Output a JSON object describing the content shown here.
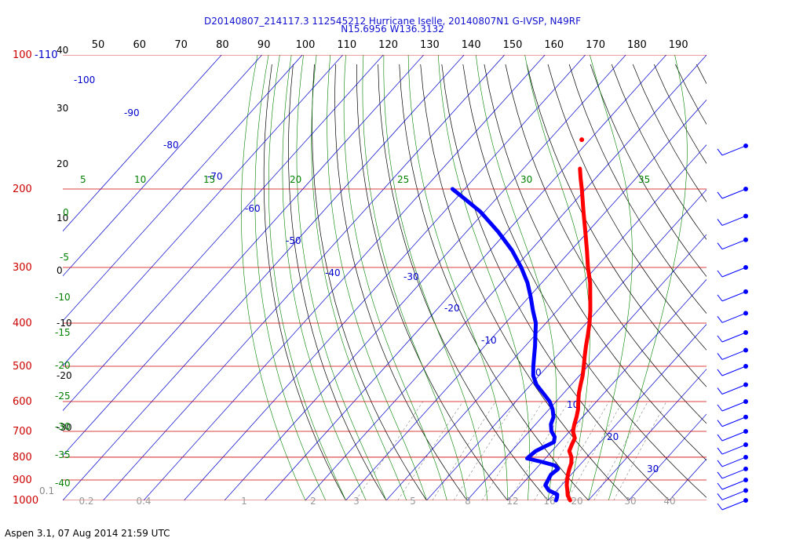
{
  "header": {
    "line1": "D20140807_214117.3 112545212 Hurricane Iselle, 20140807N1 G-IVSP, N49RF",
    "line2": "N15.6956 W136.3132"
  },
  "footer": "Aspen 3.1, 07 Aug 2014  21:59 UTC",
  "colors": {
    "temperature": "#ff0000",
    "dewpoint": "#0000ff",
    "isobar": "#cc0000",
    "isotherm": "#0000cc",
    "dry_adiabat": "#000000",
    "moist_adiabat": "#008000",
    "mixing_ratio": "#888888"
  },
  "chart_data": {
    "type": "skew-t",
    "pressure_axis_label": "pressure (hPa)",
    "pressure_levels": [
      100,
      200,
      300,
      400,
      500,
      600,
      700,
      800,
      900,
      1000
    ],
    "pressure_tick_labels": [
      "100",
      "200",
      "300",
      "400",
      "500",
      "600",
      "700",
      "800",
      "900",
      "1000"
    ],
    "corner_labels": {
      "top_left_blue": "-110",
      "bottom_left_gray": "0.1"
    },
    "top_axis_ticks": [
      "50",
      "60",
      "70",
      "80",
      "90",
      "100",
      "110",
      "120",
      "130",
      "140",
      "150",
      "160",
      "170",
      "180",
      "190"
    ],
    "left_axis_ticks": [
      "40",
      "30",
      "20",
      "10",
      "0",
      "-10",
      "-20",
      "-30"
    ],
    "isotherm_labels": [
      "-100",
      "-90",
      "-80",
      "-70",
      "-60",
      "-50",
      "-40",
      "-30",
      "-20",
      "-10",
      "0",
      "10",
      "20",
      "30"
    ],
    "moist_adiabat_labels": [
      "5",
      "10",
      "15",
      "20",
      "25",
      "30",
      "35",
      "0",
      "-5",
      "-10",
      "-15",
      "-20",
      "-25",
      "-30",
      "-35",
      "-40"
    ],
    "mixing_ratio_labels": [
      "0.2",
      "0.4",
      "1",
      "2",
      "3",
      "5",
      "8",
      "12",
      "16",
      "20",
      "30",
      "40"
    ],
    "temperature_profile": [
      {
        "p": 1000,
        "t": 25.5
      },
      {
        "p": 975,
        "t": 23.8
      },
      {
        "p": 950,
        "t": 22.6
      },
      {
        "p": 925,
        "t": 21.3
      },
      {
        "p": 900,
        "t": 20.2
      },
      {
        "p": 875,
        "t": 19.2
      },
      {
        "p": 850,
        "t": 18.3
      },
      {
        "p": 825,
        "t": 17.5
      },
      {
        "p": 800,
        "t": 16.2
      },
      {
        "p": 775,
        "t": 14.3
      },
      {
        "p": 750,
        "t": 13.5
      },
      {
        "p": 725,
        "t": 12.8
      },
      {
        "p": 700,
        "t": 10.8
      },
      {
        "p": 675,
        "t": 9.6
      },
      {
        "p": 650,
        "t": 8.5
      },
      {
        "p": 625,
        "t": 7.2
      },
      {
        "p": 600,
        "t": 5.5
      },
      {
        "p": 575,
        "t": 3.8
      },
      {
        "p": 550,
        "t": 2.3
      },
      {
        "p": 525,
        "t": 0.8
      },
      {
        "p": 500,
        "t": -1.0
      },
      {
        "p": 475,
        "t": -3.0
      },
      {
        "p": 450,
        "t": -5.0
      },
      {
        "p": 425,
        "t": -7.0
      },
      {
        "p": 400,
        "t": -9.2
      },
      {
        "p": 375,
        "t": -11.8
      },
      {
        "p": 350,
        "t": -14.8
      },
      {
        "p": 325,
        "t": -18.0
      },
      {
        "p": 300,
        "t": -22.0
      },
      {
        "p": 275,
        "t": -26.0
      },
      {
        "p": 250,
        "t": -30.5
      },
      {
        "p": 225,
        "t": -35.5
      },
      {
        "p": 200,
        "t": -41.0
      },
      {
        "p": 190,
        "t": -43.5
      },
      {
        "p": 180,
        "t": -46.0
      }
    ],
    "dewpoint_profile": [
      {
        "p": 1000,
        "td": 22.0
      },
      {
        "p": 985,
        "td": 21.6
      },
      {
        "p": 970,
        "td": 21.0
      },
      {
        "p": 950,
        "td": 18.0
      },
      {
        "p": 925,
        "td": 16.0
      },
      {
        "p": 900,
        "td": 15.5
      },
      {
        "p": 875,
        "td": 15.0
      },
      {
        "p": 850,
        "td": 15.5
      },
      {
        "p": 835,
        "td": 14.0
      },
      {
        "p": 820,
        "td": 10.0
      },
      {
        "p": 805,
        "td": 5.5
      },
      {
        "p": 790,
        "td": 5.7
      },
      {
        "p": 775,
        "td": 6.0
      },
      {
        "p": 760,
        "td": 7.0
      },
      {
        "p": 740,
        "td": 8.5
      },
      {
        "p": 720,
        "td": 7.5
      },
      {
        "p": 700,
        "td": 5.5
      },
      {
        "p": 675,
        "td": 3.8
      },
      {
        "p": 650,
        "td": 2.8
      },
      {
        "p": 625,
        "td": 0.9
      },
      {
        "p": 600,
        "td": -1.6
      },
      {
        "p": 575,
        "td": -5.0
      },
      {
        "p": 550,
        "td": -8.6
      },
      {
        "p": 525,
        "td": -11.4
      },
      {
        "p": 500,
        "td": -13.5
      },
      {
        "p": 475,
        "td": -15.5
      },
      {
        "p": 450,
        "td": -17.6
      },
      {
        "p": 425,
        "td": -20.0
      },
      {
        "p": 400,
        "td": -22.5
      },
      {
        "p": 375,
        "td": -26.0
      },
      {
        "p": 350,
        "td": -29.5
      },
      {
        "p": 325,
        "td": -33.5
      },
      {
        "p": 300,
        "td": -38.5
      },
      {
        "p": 275,
        "td": -44.5
      },
      {
        "p": 250,
        "td": -52.0
      },
      {
        "p": 225,
        "td": -61.0
      },
      {
        "p": 210,
        "td": -68.0
      },
      {
        "p": 200,
        "td": -73.0
      }
    ],
    "isolated_temperature_point": {
      "p": 155,
      "t": -52.0
    },
    "wind_barb_levels": [
      160,
      200,
      230,
      260,
      300,
      340,
      380,
      420,
      460,
      500,
      550,
      600,
      650,
      700,
      750,
      800,
      850,
      900,
      950,
      1000
    ]
  }
}
